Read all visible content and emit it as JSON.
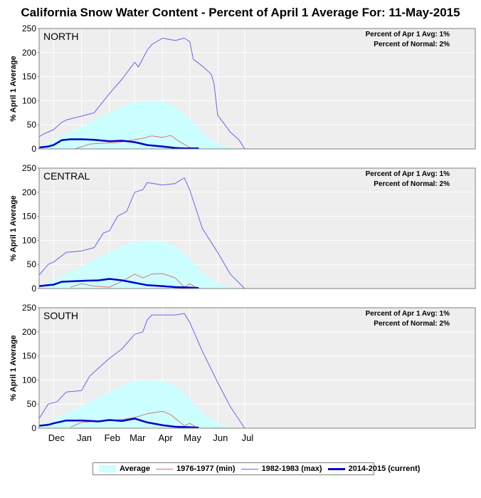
{
  "title": "California Snow Water Content - Percent of April 1 Average For: 11-May-2015",
  "colors": {
    "plot_bg": "#eeeeee",
    "average_fill": "#ccffff",
    "min": "#e07070",
    "max": "#6666ee",
    "current": "#0000cc"
  },
  "legend": [
    {
      "key": "average",
      "label": "Average"
    },
    {
      "key": "min",
      "label": "1976-1977 (min)"
    },
    {
      "key": "max",
      "label": "1982-1983 (max)"
    },
    {
      "key": "current",
      "label": "2014-2015 (current)"
    }
  ],
  "chart_data": [
    {
      "type": "area",
      "region": "NORTH",
      "ylabel": "% April 1 Average",
      "ylim": [
        0,
        250
      ],
      "yticks": [
        0,
        50,
        100,
        150,
        200,
        250
      ],
      "x_tick_labels": [
        "Dec",
        "Jan",
        "Feb",
        "Mar",
        "Apr",
        "May",
        "Jun",
        "Jul"
      ],
      "annotation_lines": [
        "Percent of Apr 1 Avg: 1%",
        "Percent of Normal: 2%"
      ],
      "series": [
        {
          "name": "Average",
          "key": "average",
          "x": [
            "Nov-15",
            "Dec-01",
            "Dec-15",
            "Jan-01",
            "Jan-15",
            "Feb-01",
            "Feb-15",
            "Mar-01",
            "Mar-15",
            "Apr-01",
            "Apr-15",
            "May-01",
            "May-15",
            "Jun-01",
            "Jun-15",
            "Jul-01"
          ],
          "values": [
            3,
            17,
            31,
            45,
            60,
            75,
            88,
            97,
            100,
            98,
            88,
            62,
            33,
            10,
            2,
            0
          ]
        },
        {
          "name": "1976-1977 (min)",
          "key": "min",
          "x": [
            "Dec-25",
            "Jan-10",
            "Jan-25",
            "Feb-10",
            "Feb-25",
            "Mar-10",
            "Mar-20",
            "Apr-01",
            "Apr-10",
            "Apr-20",
            "May-01",
            "May-10"
          ],
          "values": [
            0,
            10,
            12,
            13,
            18,
            22,
            27,
            24,
            28,
            15,
            3,
            0
          ]
        },
        {
          "name": "1982-1983 (max)",
          "key": "max",
          "x": [
            "Nov-15",
            "Nov-20",
            "Dec-01",
            "Dec-10",
            "Dec-15",
            "Jan-01",
            "Jan-15",
            "Feb-01",
            "Feb-15",
            "Mar-01",
            "Mar-05",
            "Mar-15",
            "Mar-20",
            "Apr-01",
            "Apr-15",
            "Apr-25",
            "May-01",
            "May-05",
            "May-15",
            "May-25",
            "May-28",
            "Jun-01",
            "Jun-15",
            "Jun-25",
            "Jul-01"
          ],
          "values": [
            25,
            31,
            40,
            55,
            60,
            68,
            75,
            115,
            145,
            180,
            170,
            205,
            217,
            230,
            225,
            230,
            223,
            186,
            172,
            155,
            135,
            70,
            35,
            18,
            0
          ]
        },
        {
          "name": "2014-2015 (current)",
          "key": "current",
          "x": [
            "Nov-15",
            "Nov-25",
            "Dec-01",
            "Dec-10",
            "Dec-20",
            "Jan-01",
            "Jan-15",
            "Feb-01",
            "Feb-15",
            "Mar-01",
            "Mar-15",
            "Apr-01",
            "Apr-15",
            "Apr-25",
            "May-01",
            "May-11"
          ],
          "values": [
            3,
            5,
            8,
            18,
            20,
            20,
            19,
            16,
            17,
            14,
            8,
            5,
            2,
            1,
            1,
            1
          ]
        }
      ]
    },
    {
      "type": "area",
      "region": "CENTRAL",
      "ylabel": "% April 1 Average",
      "ylim": [
        0,
        250
      ],
      "yticks": [
        0,
        50,
        100,
        150,
        200,
        250
      ],
      "x_tick_labels": [
        "Dec",
        "Jan",
        "Feb",
        "Mar",
        "Apr",
        "May",
        "Jun",
        "Jul"
      ],
      "annotation_lines": [
        "Percent of Apr 1 Avg: 1%",
        "Percent of Normal: 2%"
      ],
      "series": [
        {
          "name": "Average",
          "key": "average",
          "x": [
            "Nov-15",
            "Dec-01",
            "Dec-15",
            "Jan-01",
            "Jan-15",
            "Feb-01",
            "Feb-15",
            "Mar-01",
            "Mar-15",
            "Apr-01",
            "Apr-15",
            "May-01",
            "May-15",
            "Jun-01",
            "Jun-15",
            "Jul-01"
          ],
          "values": [
            3,
            17,
            31,
            45,
            60,
            75,
            88,
            97,
            100,
            98,
            88,
            62,
            33,
            10,
            2,
            0
          ]
        },
        {
          "name": "1976-1977 (min)",
          "key": "min",
          "x": [
            "Dec-20",
            "Jan-01",
            "Jan-15",
            "Feb-01",
            "Feb-15",
            "Mar-01",
            "Mar-10",
            "Mar-20",
            "Apr-01",
            "Apr-15",
            "Apr-25",
            "May-01",
            "May-10"
          ],
          "values": [
            3,
            10,
            5,
            3,
            15,
            30,
            22,
            30,
            31,
            22,
            3,
            10,
            0
          ]
        },
        {
          "name": "1982-1983 (max)",
          "key": "max",
          "x": [
            "Nov-15",
            "Nov-25",
            "Dec-01",
            "Dec-15",
            "Jan-01",
            "Jan-15",
            "Jan-25",
            "Feb-01",
            "Feb-10",
            "Feb-20",
            "Mar-01",
            "Mar-10",
            "Mar-15",
            "Apr-01",
            "Apr-15",
            "Apr-25",
            "May-01",
            "May-15",
            "Jun-01",
            "Jun-15",
            "Jul-01"
          ],
          "values": [
            28,
            50,
            55,
            75,
            78,
            85,
            115,
            120,
            150,
            160,
            200,
            205,
            220,
            215,
            218,
            230,
            205,
            125,
            75,
            30,
            0
          ]
        },
        {
          "name": "2014-2015 (current)",
          "key": "current",
          "x": [
            "Nov-15",
            "Nov-25",
            "Dec-01",
            "Dec-10",
            "Jan-01",
            "Jan-20",
            "Feb-01",
            "Feb-15",
            "Mar-01",
            "Mar-15",
            "Apr-01",
            "Apr-15",
            "May-01",
            "May-11"
          ],
          "values": [
            5,
            7,
            8,
            14,
            16,
            17,
            20,
            17,
            12,
            7,
            5,
            3,
            2,
            1
          ]
        }
      ]
    },
    {
      "type": "area",
      "region": "SOUTH",
      "ylabel": "% April 1 Average",
      "ylim": [
        0,
        250
      ],
      "yticks": [
        0,
        50,
        100,
        150,
        200,
        250
      ],
      "x_tick_labels": [
        "Dec",
        "Jan",
        "Feb",
        "Mar",
        "Apr",
        "May",
        "Jun",
        "Jul"
      ],
      "annotation_lines": [
        "Percent of Apr 1 Avg: 1%",
        "Percent of Normal: 2%"
      ],
      "series": [
        {
          "name": "Average",
          "key": "average",
          "x": [
            "Nov-15",
            "Dec-01",
            "Dec-15",
            "Jan-01",
            "Jan-15",
            "Feb-01",
            "Feb-15",
            "Mar-01",
            "Mar-15",
            "Apr-01",
            "Apr-15",
            "May-01",
            "May-15",
            "Jun-01",
            "Jun-15",
            "Jul-01"
          ],
          "values": [
            3,
            17,
            31,
            45,
            60,
            75,
            88,
            97,
            100,
            98,
            88,
            62,
            33,
            10,
            2,
            0
          ]
        },
        {
          "name": "1976-1977 (min)",
          "key": "min",
          "x": [
            "Dec-20",
            "Jan-01",
            "Jan-15",
            "Feb-01",
            "Feb-15",
            "Mar-01",
            "Mar-15",
            "Apr-01",
            "Apr-10",
            "Apr-25",
            "May-01",
            "May-10"
          ],
          "values": [
            2,
            12,
            14,
            16,
            18,
            22,
            30,
            35,
            28,
            5,
            10,
            0
          ]
        },
        {
          "name": "1982-1983 (max)",
          "key": "max",
          "x": [
            "Nov-15",
            "Nov-25",
            "Dec-05",
            "Dec-15",
            "Jan-01",
            "Jan-10",
            "Jan-20",
            "Feb-01",
            "Feb-15",
            "Mar-01",
            "Mar-10",
            "Mar-15",
            "Mar-20",
            "Apr-01",
            "Apr-15",
            "Apr-25",
            "May-01",
            "May-15",
            "Jun-01",
            "Jun-15",
            "Jul-01"
          ],
          "values": [
            20,
            50,
            55,
            75,
            78,
            108,
            125,
            145,
            165,
            195,
            200,
            225,
            235,
            235,
            235,
            238,
            220,
            160,
            95,
            45,
            0
          ]
        },
        {
          "name": "2014-2015 (current)",
          "key": "current",
          "x": [
            "Nov-15",
            "Nov-25",
            "Dec-01",
            "Dec-15",
            "Jan-01",
            "Jan-20",
            "Feb-01",
            "Feb-15",
            "Mar-01",
            "Mar-15",
            "Apr-01",
            "Apr-15",
            "May-01",
            "May-11"
          ],
          "values": [
            5,
            7,
            10,
            16,
            16,
            14,
            17,
            15,
            20,
            12,
            6,
            3,
            2,
            1
          ]
        }
      ]
    }
  ]
}
